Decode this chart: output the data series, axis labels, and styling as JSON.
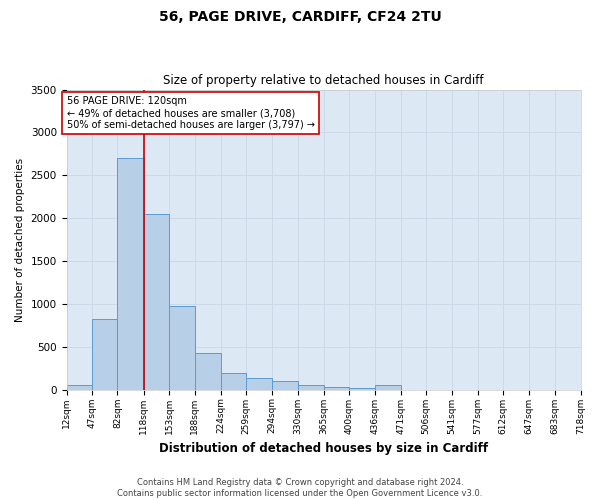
{
  "title1": "56, PAGE DRIVE, CARDIFF, CF24 2TU",
  "title2": "Size of property relative to detached houses in Cardiff",
  "xlabel": "Distribution of detached houses by size in Cardiff",
  "ylabel": "Number of detached properties",
  "bar_edges": [
    12,
    47,
    82,
    118,
    153,
    188,
    224,
    259,
    294,
    330,
    365,
    400,
    436,
    471,
    506,
    541,
    577,
    612,
    647,
    683,
    718
  ],
  "bar_heights": [
    55,
    820,
    2700,
    2050,
    980,
    430,
    200,
    140,
    100,
    50,
    30,
    20,
    50,
    0,
    0,
    0,
    0,
    0,
    0,
    0
  ],
  "bar_color": "#b8cfe8",
  "bar_edge_color": "#5b9bd5",
  "vline_x": 118,
  "vline_color": "#cc0000",
  "annotation_text": "56 PAGE DRIVE: 120sqm\n← 49% of detached houses are smaller (3,708)\n50% of semi-detached houses are larger (3,797) →",
  "annotation_box_color": "#cc0000",
  "ylim": [
    0,
    3500
  ],
  "yticks": [
    0,
    500,
    1000,
    1500,
    2000,
    2500,
    3000,
    3500
  ],
  "grid_color": "#c8d8e8",
  "background_color": "#dce8f4",
  "fig_background_color": "#ffffff",
  "footer1": "Contains HM Land Registry data © Crown copyright and database right 2024.",
  "footer2": "Contains public sector information licensed under the Open Government Licence v3.0."
}
